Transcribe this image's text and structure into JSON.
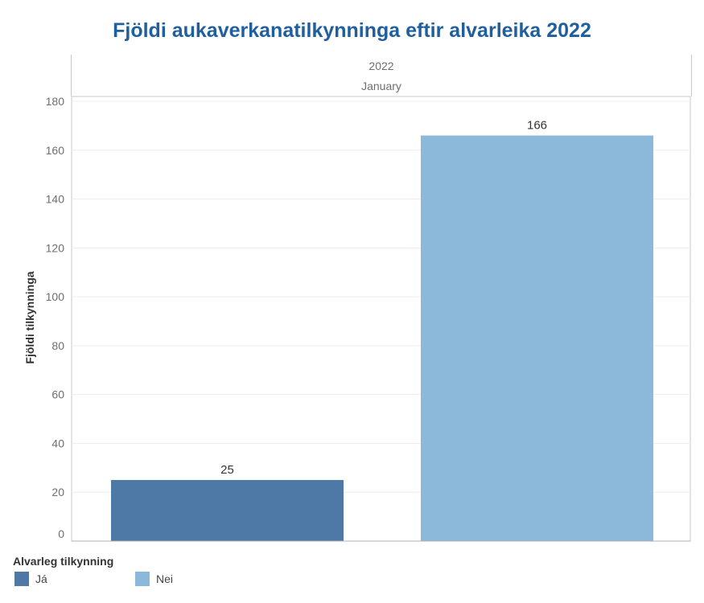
{
  "chart_data": {
    "type": "bar",
    "title": "Fjöldi aukaverkanatilkynninga eftir alvarleika 2022",
    "header": {
      "year": "2022",
      "month": "January"
    },
    "ylabel": "Fjöldi tilkynninga",
    "ylim": [
      0,
      180
    ],
    "yticks": [
      "0",
      "20",
      "40",
      "60",
      "80",
      "100",
      "120",
      "140",
      "160",
      "180"
    ],
    "grid": true,
    "categories": [
      "Já",
      "Nei"
    ],
    "values": [
      25,
      166
    ],
    "data_labels": [
      "25",
      "166"
    ],
    "colors": [
      "#4e79a7",
      "#8cb8da"
    ],
    "legend": {
      "title": "Alvarleg tilkynning",
      "position": "bottom-left",
      "items": [
        {
          "label": "Já",
          "color": "#4e79a7"
        },
        {
          "label": "Nei",
          "color": "#8cb8da"
        }
      ]
    }
  }
}
